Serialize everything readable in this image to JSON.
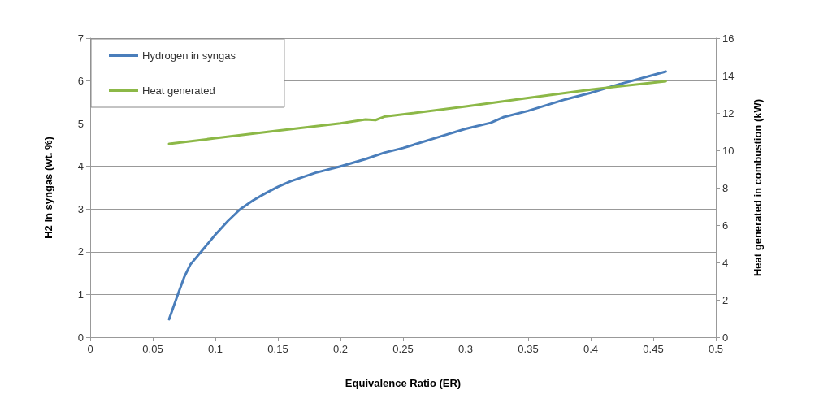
{
  "chart_data": {
    "type": "line",
    "xlabel": "Equivalence Ratio (ER)",
    "ylabel": "H2 in syngas (wt. %)",
    "y2label": "Heat generated in combustion (kW)",
    "xlim": [
      0,
      0.5
    ],
    "xticks": [
      0,
      0.05,
      0.1,
      0.15,
      0.2,
      0.25,
      0.3,
      0.35,
      0.4,
      0.45,
      0.5
    ],
    "ylim": [
      0,
      7
    ],
    "yticks": [
      0,
      1,
      2,
      3,
      4,
      5,
      6,
      7
    ],
    "y2lim": [
      0,
      16
    ],
    "y2ticks": [
      0,
      2,
      4,
      6,
      8,
      10,
      12,
      14,
      16
    ],
    "grid": "y",
    "legend": "top left",
    "marker": "none",
    "line_style": "solid",
    "series": [
      {
        "name": "Hydrogen in syngas",
        "color": "#4a7ebb",
        "x": [
          0.063,
          0.07,
          0.075,
          0.08,
          0.09,
          0.1,
          0.11,
          0.12,
          0.13,
          0.14,
          0.15,
          0.16,
          0.18,
          0.2,
          0.22,
          0.235,
          0.25,
          0.28,
          0.3,
          0.32,
          0.33,
          0.35,
          0.38,
          0.4,
          0.42,
          0.46
        ],
        "values": [
          0.42,
          1.0,
          1.4,
          1.7,
          2.05,
          2.4,
          2.72,
          3.0,
          3.2,
          3.37,
          3.52,
          3.65,
          3.85,
          4.0,
          4.17,
          4.32,
          4.43,
          4.7,
          4.88,
          5.02,
          5.15,
          5.3,
          5.57,
          5.72,
          5.9,
          6.22
        ]
      },
      {
        "name": "Heat generated",
        "color": "#8cb847",
        "axis": "y2",
        "x": [
          0.063,
          0.1,
          0.15,
          0.2,
          0.22,
          0.228,
          0.235,
          0.3,
          0.35,
          0.4,
          0.46
        ],
        "values": [
          10.35,
          10.65,
          11.05,
          11.45,
          11.65,
          11.62,
          11.8,
          12.35,
          12.8,
          13.25,
          13.7
        ]
      }
    ]
  }
}
